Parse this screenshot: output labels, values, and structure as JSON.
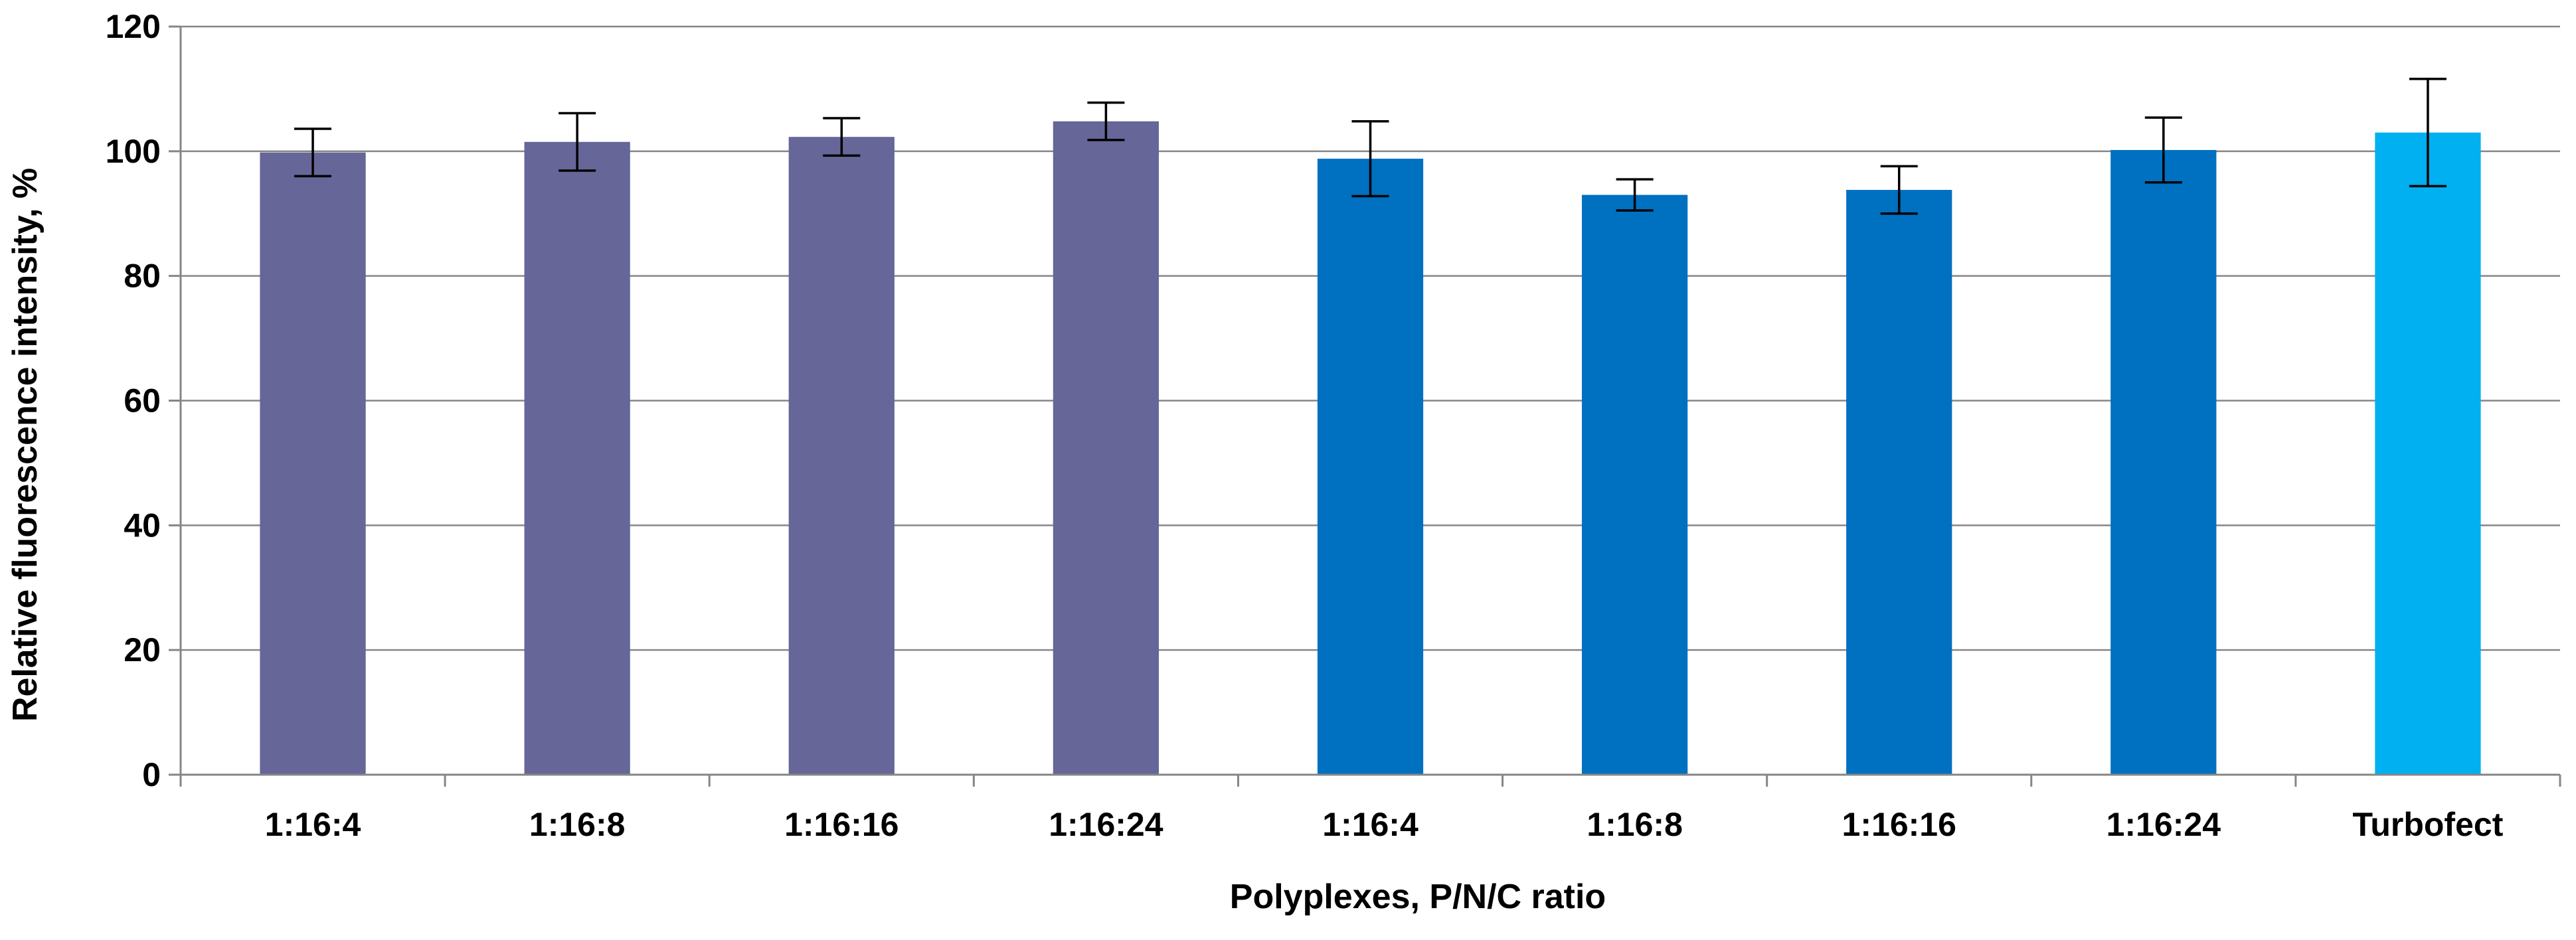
{
  "chart_data": {
    "type": "bar",
    "title": "",
    "xlabel": "Polyplexes, P/N/C ratio",
    "ylabel": "Relative fluorescence intensity, %",
    "ylim": [
      0,
      120
    ],
    "yticks": [
      0,
      20,
      40,
      60,
      80,
      100,
      120
    ],
    "yticks_labels": [
      "0",
      "20",
      "40",
      "60",
      "80",
      "100",
      "120"
    ],
    "grid": true,
    "legend": "none",
    "categories": [
      "1:16:4",
      "1:16:8",
      "1:16:16",
      "1:16:24",
      "1:16:4",
      "1:16:8",
      "1:16:16",
      "1:16:24",
      "Turbofect"
    ],
    "values": [
      99.8,
      101.5,
      102.3,
      104.8,
      98.8,
      93.0,
      93.8,
      100.2,
      103.0
    ],
    "errors": [
      3.8,
      4.6,
      3.0,
      3.0,
      6.0,
      2.5,
      3.8,
      5.2,
      8.6
    ],
    "colors": [
      "#666699",
      "#666699",
      "#666699",
      "#666699",
      "#0070C0",
      "#0070C0",
      "#0070C0",
      "#0070C0",
      "#00B0F0"
    ],
    "grid_color": "#868686",
    "axis_color": "#868686",
    "error_bar_color": "#000000"
  }
}
